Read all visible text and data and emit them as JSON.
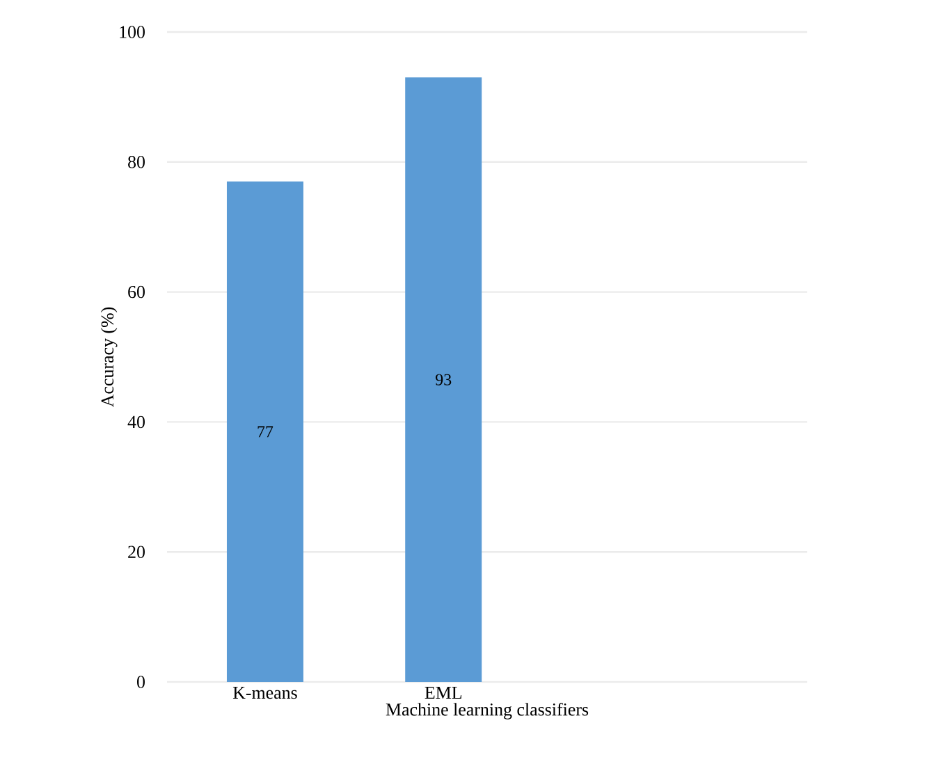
{
  "chart_data": {
    "type": "bar",
    "xlabel": "Machine learning classifiers",
    "ylabel": "Accuracy (%)",
    "categories": [
      "K-means",
      "EML"
    ],
    "values": [
      77,
      93
    ],
    "color": "#5b9bd5",
    "ylim": [
      0,
      100
    ],
    "yticks": [
      0,
      20,
      40,
      60,
      80,
      100
    ],
    "grid": "y",
    "data_labels": true
  }
}
